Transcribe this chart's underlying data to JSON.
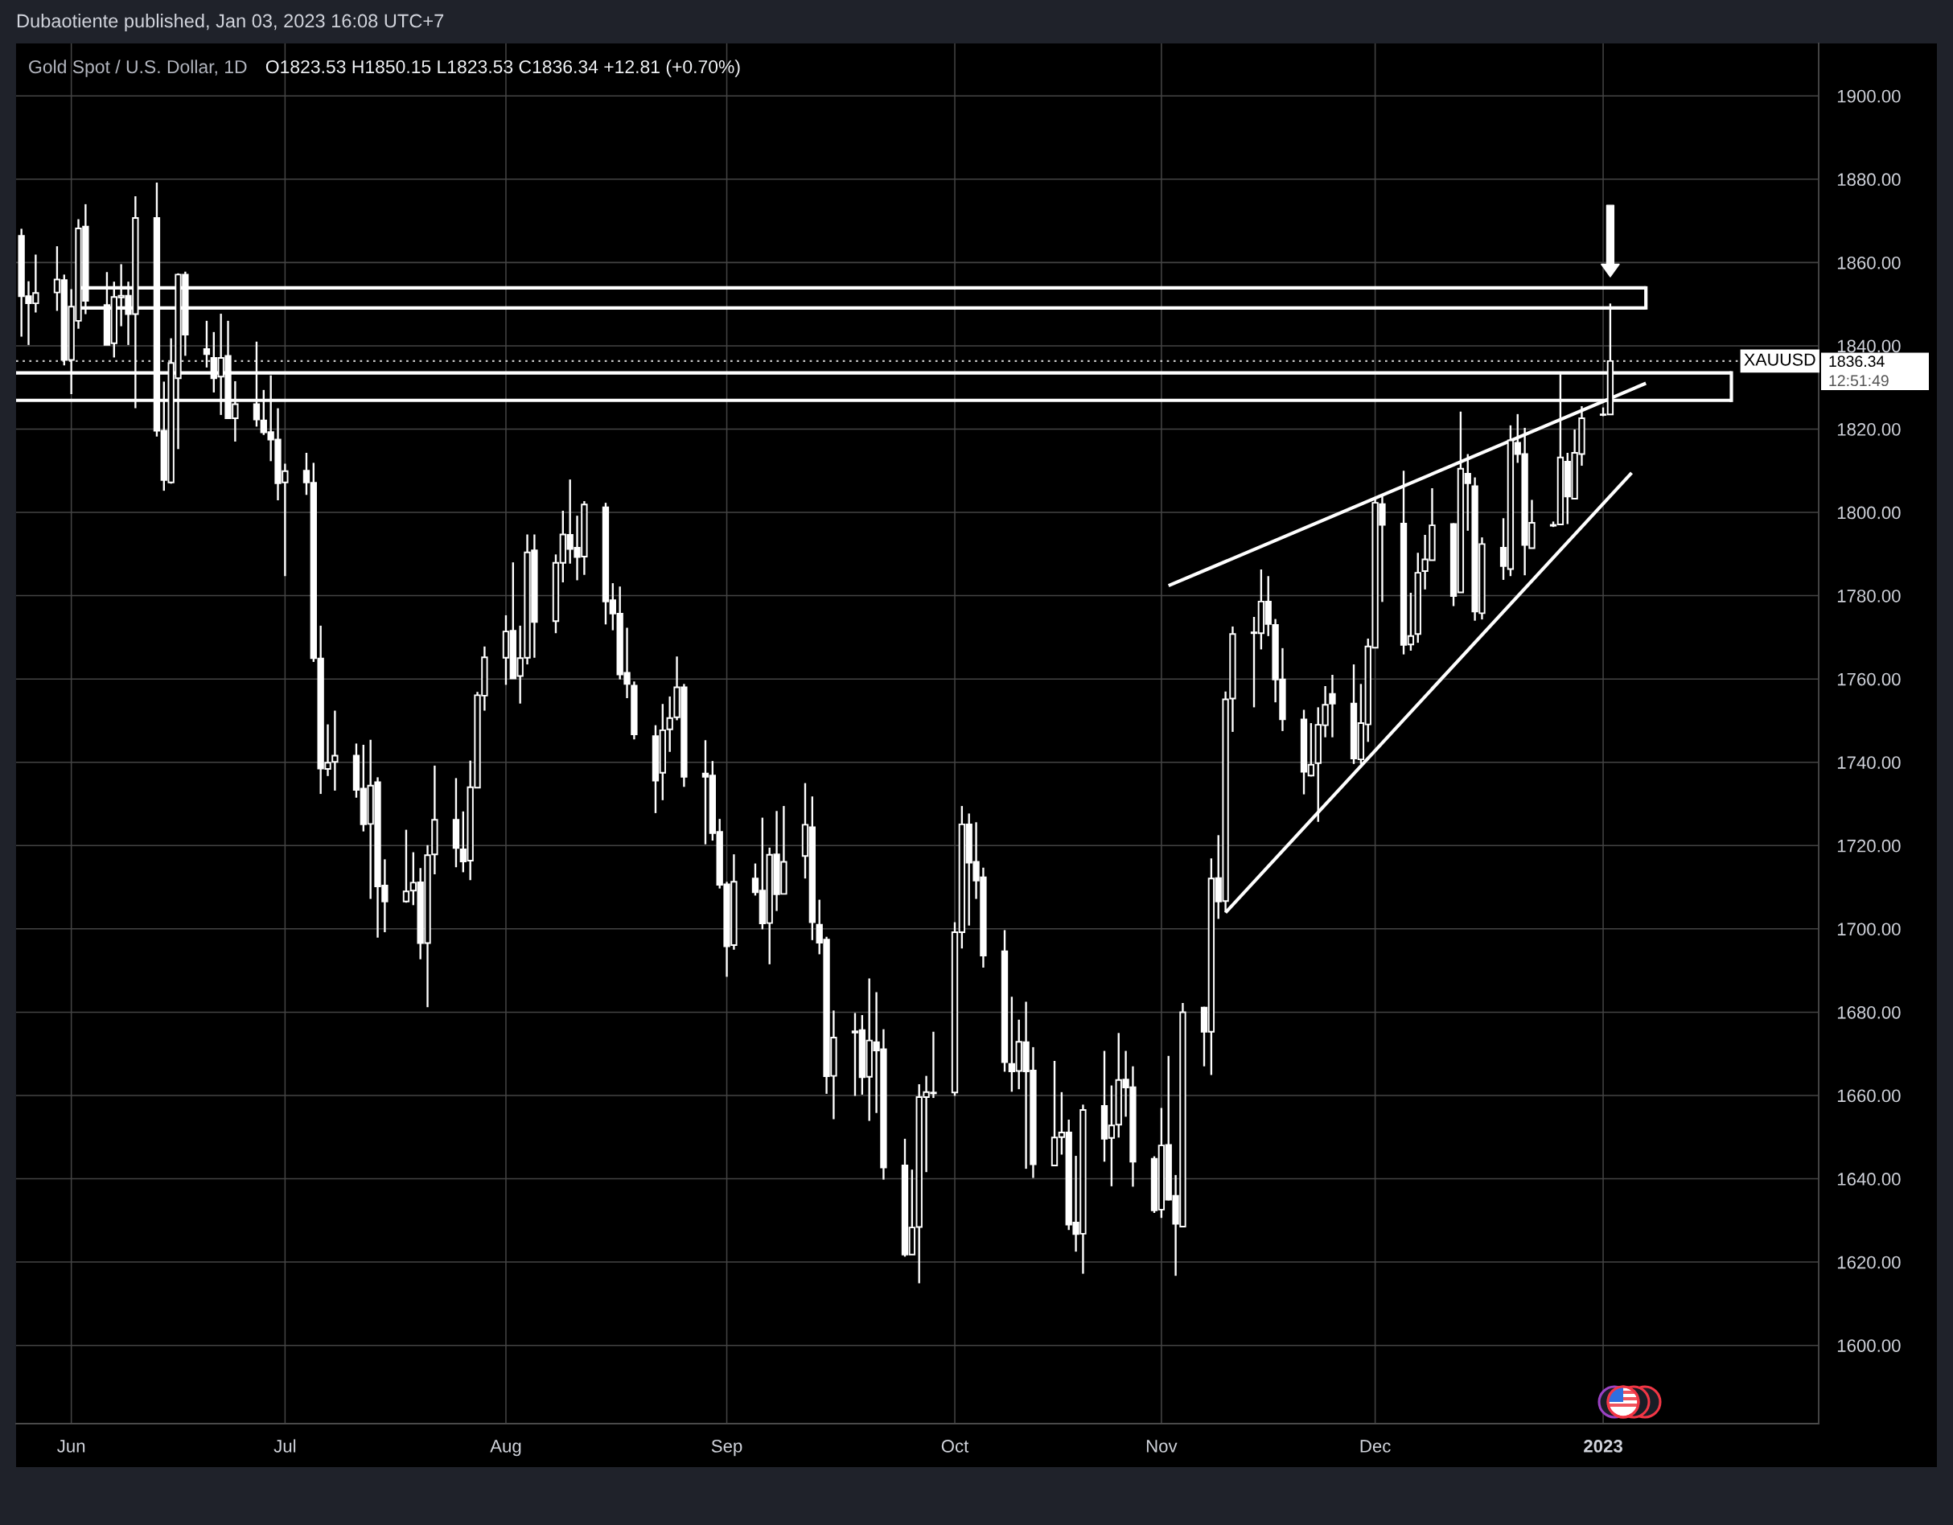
{
  "chart_data": {
    "type": "candlestick",
    "title": "Gold Spot / U.S. Dollar, 1D",
    "subtitle": "O1823.53 H1850.15 L1823.53 C1836.34 +12.81 (+0.70%)",
    "color": "#ffffff",
    "x": [
      "2022-05-25",
      "2022-05-26",
      "2022-05-27",
      "2022-05-30",
      "2022-05-31",
      "2022-06-01",
      "2022-06-02",
      "2022-06-03",
      "2022-06-06",
      "2022-06-07",
      "2022-06-08",
      "2022-06-09",
      "2022-06-10",
      "2022-06-13",
      "2022-06-14",
      "2022-06-15",
      "2022-06-16",
      "2022-06-17",
      "2022-06-20",
      "2022-06-21",
      "2022-06-22",
      "2022-06-23",
      "2022-06-24",
      "2022-06-27",
      "2022-06-28",
      "2022-06-29",
      "2022-06-30",
      "2022-07-01",
      "2022-07-04",
      "2022-07-05",
      "2022-07-06",
      "2022-07-07",
      "2022-07-08",
      "2022-07-11",
      "2022-07-12",
      "2022-07-13",
      "2022-07-14",
      "2022-07-15",
      "2022-07-18",
      "2022-07-19",
      "2022-07-20",
      "2022-07-21",
      "2022-07-22",
      "2022-07-25",
      "2022-07-26",
      "2022-07-27",
      "2022-07-28",
      "2022-07-29",
      "2022-08-01",
      "2022-08-02",
      "2022-08-03",
      "2022-08-04",
      "2022-08-05",
      "2022-08-08",
      "2022-08-09",
      "2022-08-10",
      "2022-08-11",
      "2022-08-12",
      "2022-08-15",
      "2022-08-16",
      "2022-08-17",
      "2022-08-18",
      "2022-08-19",
      "2022-08-22",
      "2022-08-23",
      "2022-08-24",
      "2022-08-25",
      "2022-08-26",
      "2022-08-29",
      "2022-08-30",
      "2022-08-31",
      "2022-09-01",
      "2022-09-02",
      "2022-09-05",
      "2022-09-06",
      "2022-09-07",
      "2022-09-08",
      "2022-09-09",
      "2022-09-12",
      "2022-09-13",
      "2022-09-14",
      "2022-09-15",
      "2022-09-16",
      "2022-09-19",
      "2022-09-20",
      "2022-09-21",
      "2022-09-22",
      "2022-09-23",
      "2022-09-26",
      "2022-09-27",
      "2022-09-28",
      "2022-09-29",
      "2022-09-30",
      "2022-10-03",
      "2022-10-04",
      "2022-10-05",
      "2022-10-06",
      "2022-10-07",
      "2022-10-10",
      "2022-10-11",
      "2022-10-12",
      "2022-10-13",
      "2022-10-14",
      "2022-10-17",
      "2022-10-18",
      "2022-10-19",
      "2022-10-20",
      "2022-10-21",
      "2022-10-24",
      "2022-10-25",
      "2022-10-26",
      "2022-10-27",
      "2022-10-28",
      "2022-10-31",
      "2022-11-01",
      "2022-11-02",
      "2022-11-03",
      "2022-11-04",
      "2022-11-07",
      "2022-11-08",
      "2022-11-09",
      "2022-11-10",
      "2022-11-11",
      "2022-11-14",
      "2022-11-15",
      "2022-11-16",
      "2022-11-17",
      "2022-11-18",
      "2022-11-21",
      "2022-11-22",
      "2022-11-23",
      "2022-11-24",
      "2022-11-25",
      "2022-11-28",
      "2022-11-29",
      "2022-11-30",
      "2022-12-01",
      "2022-12-02",
      "2022-12-05",
      "2022-12-06",
      "2022-12-07",
      "2022-12-08",
      "2022-12-09",
      "2022-12-12",
      "2022-12-13",
      "2022-12-14",
      "2022-12-15",
      "2022-12-16",
      "2022-12-19",
      "2022-12-20",
      "2022-12-21",
      "2022-12-22",
      "2022-12-23",
      "2022-12-26",
      "2022-12-27",
      "2022-12-28",
      "2022-12-29",
      "2022-12-30",
      "2023-01-02",
      "2023-01-03"
    ],
    "ohlc": [
      [
        1866.4,
        1868.1,
        1842.2,
        1851.9
      ],
      [
        1851.9,
        1855.5,
        1840.2,
        1850.2
      ],
      [
        1850.2,
        1861.9,
        1848.0,
        1852.7
      ],
      [
        1852.8,
        1863.9,
        1848.4,
        1855.9
      ],
      [
        1855.8,
        1857.1,
        1835.3,
        1836.6
      ],
      [
        1836.6,
        1853.6,
        1828.4,
        1849.4
      ],
      [
        1846.0,
        1870.4,
        1844.1,
        1868.2
      ],
      [
        1868.6,
        1874.0,
        1847.6,
        1850.8
      ],
      [
        1849.8,
        1857.7,
        1840.2,
        1840.2
      ],
      [
        1840.6,
        1855.4,
        1837.2,
        1851.7
      ],
      [
        1851.6,
        1859.6,
        1844.7,
        1852.0
      ],
      [
        1852.0,
        1855.4,
        1840.2,
        1847.6
      ],
      [
        1847.6,
        1875.9,
        1825.0,
        1870.7
      ],
      [
        1870.7,
        1879.2,
        1818.2,
        1819.6
      ],
      [
        1819.6,
        1831.4,
        1805.2,
        1807.8
      ],
      [
        1807.2,
        1841.8,
        1806.9,
        1835.9
      ],
      [
        1832.2,
        1857.4,
        1815.2,
        1857.1
      ],
      [
        1857.1,
        1857.8,
        1837.6,
        1842.7
      ],
      [
        1839.2,
        1846.0,
        1834.8,
        1838.0
      ],
      [
        1837.1,
        1843.3,
        1828.8,
        1832.2
      ],
      [
        1832.6,
        1847.7,
        1823.4,
        1837.1
      ],
      [
        1837.6,
        1846.0,
        1822.6,
        1822.6
      ],
      [
        1822.6,
        1831.5,
        1817.0,
        1826.0
      ],
      [
        1826.0,
        1841.0,
        1820.6,
        1822.3
      ],
      [
        1822.1,
        1829.4,
        1818.6,
        1819.2
      ],
      [
        1819.3,
        1832.9,
        1812.3,
        1817.5
      ],
      [
        1817.5,
        1825.0,
        1802.9,
        1807.0
      ],
      [
        1807.2,
        1811.7,
        1784.7,
        1809.9
      ],
      [
        1810.0,
        1814.3,
        1804.2,
        1807.2
      ],
      [
        1807.1,
        1811.9,
        1764.1,
        1765.0
      ],
      [
        1764.9,
        1772.8,
        1732.4,
        1738.5
      ],
      [
        1738.4,
        1749.1,
        1736.7,
        1739.9
      ],
      [
        1740.1,
        1752.4,
        1733.2,
        1741.6
      ],
      [
        1741.6,
        1744.5,
        1731.5,
        1733.4
      ],
      [
        1733.7,
        1744.2,
        1723.4,
        1725.1
      ],
      [
        1725.2,
        1745.4,
        1707.2,
        1734.4
      ],
      [
        1735.2,
        1736.4,
        1697.9,
        1710.2
      ],
      [
        1710.4,
        1716.7,
        1699.2,
        1706.6
      ],
      [
        1706.6,
        1723.8,
        1706.3,
        1709.0
      ],
      [
        1709.2,
        1718.4,
        1705.7,
        1711.1
      ],
      [
        1711.2,
        1714.6,
        1692.7,
        1696.6
      ],
      [
        1696.6,
        1720.1,
        1681.2,
        1717.7
      ],
      [
        1717.9,
        1739.2,
        1713.1,
        1726.2
      ],
      [
        1726.2,
        1736.2,
        1714.8,
        1719.4
      ],
      [
        1719.1,
        1728.2,
        1713.6,
        1716.2
      ],
      [
        1716.4,
        1740.4,
        1711.7,
        1734.0
      ],
      [
        1733.9,
        1756.9,
        1733.9,
        1756.1
      ],
      [
        1756.0,
        1767.8,
        1752.4,
        1765.2
      ],
      [
        1765.1,
        1775.3,
        1758.6,
        1771.4
      ],
      [
        1771.6,
        1788.0,
        1760.1,
        1760.1
      ],
      [
        1760.7,
        1772.8,
        1754.1,
        1765.0
      ],
      [
        1765.1,
        1794.7,
        1763.5,
        1790.4
      ],
      [
        1790.9,
        1794.7,
        1765.1,
        1773.7
      ],
      [
        1773.9,
        1789.9,
        1771.0,
        1787.9
      ],
      [
        1787.9,
        1800.4,
        1783.2,
        1794.7
      ],
      [
        1794.6,
        1807.9,
        1787.7,
        1791.2
      ],
      [
        1791.5,
        1799.2,
        1783.7,
        1789.3
      ],
      [
        1789.4,
        1802.7,
        1785.0,
        1801.9
      ],
      [
        1801.2,
        1802.3,
        1773.1,
        1778.6
      ],
      [
        1778.9,
        1783.0,
        1771.7,
        1775.7
      ],
      [
        1775.7,
        1782.2,
        1759.9,
        1761.1
      ],
      [
        1761.5,
        1772.3,
        1755.4,
        1758.8
      ],
      [
        1758.4,
        1759.4,
        1745.5,
        1746.7
      ],
      [
        1746.3,
        1748.9,
        1727.8,
        1735.6
      ],
      [
        1737.5,
        1754.0,
        1730.9,
        1747.7
      ],
      [
        1747.9,
        1755.8,
        1742.5,
        1750.6
      ],
      [
        1750.8,
        1765.4,
        1750.1,
        1758.0
      ],
      [
        1758.0,
        1758.8,
        1734.1,
        1736.5
      ],
      [
        1737.3,
        1745.3,
        1720.3,
        1736.5
      ],
      [
        1736.8,
        1740.3,
        1721.2,
        1723.0
      ],
      [
        1723.3,
        1726.4,
        1709.7,
        1710.6
      ],
      [
        1710.7,
        1711.3,
        1688.5,
        1695.8
      ],
      [
        1696.1,
        1717.9,
        1695.0,
        1711.3
      ],
      [
        1712.1,
        1715.7,
        1708.0,
        1708.8
      ],
      [
        1709.2,
        1726.7,
        1699.9,
        1701.3
      ],
      [
        1701.4,
        1719.5,
        1691.5,
        1717.8
      ],
      [
        1717.9,
        1728.3,
        1704.3,
        1708.3
      ],
      [
        1708.4,
        1729.5,
        1708.4,
        1716.1
      ],
      [
        1717.5,
        1735.0,
        1712.1,
        1725.0
      ],
      [
        1724.4,
        1731.8,
        1697.3,
        1701.6
      ],
      [
        1701.0,
        1707.0,
        1693.9,
        1696.7
      ],
      [
        1697.4,
        1698.1,
        1660.4,
        1664.6
      ],
      [
        1664.7,
        1680.4,
        1654.3,
        1673.9
      ],
      [
        1675.1,
        1679.8,
        1659.9,
        1675.4
      ],
      [
        1675.7,
        1679.3,
        1660.2,
        1664.4
      ],
      [
        1664.5,
        1688.1,
        1653.9,
        1673.2
      ],
      [
        1672.8,
        1684.8,
        1655.8,
        1670.8
      ],
      [
        1671.1,
        1675.9,
        1639.8,
        1642.7
      ],
      [
        1643.2,
        1649.6,
        1621.3,
        1621.8
      ],
      [
        1621.8,
        1642.2,
        1621.8,
        1628.3
      ],
      [
        1628.4,
        1662.7,
        1614.9,
        1659.6
      ],
      [
        1659.6,
        1664.7,
        1641.6,
        1660.8
      ],
      [
        1660.5,
        1675.3,
        1659.4,
        1660.7
      ],
      [
        1660.7,
        1701.6,
        1659.9,
        1699.2
      ],
      [
        1699.2,
        1729.5,
        1695.3,
        1725.1
      ],
      [
        1725.1,
        1727.7,
        1700.8,
        1715.9
      ],
      [
        1716.1,
        1725.6,
        1707.2,
        1711.6
      ],
      [
        1712.4,
        1714.7,
        1690.7,
        1693.6
      ],
      [
        1694.6,
        1699.7,
        1665.7,
        1668.0
      ],
      [
        1667.6,
        1683.7,
        1660.9,
        1665.8
      ],
      [
        1665.9,
        1678.2,
        1661.5,
        1672.9
      ],
      [
        1672.8,
        1682.5,
        1642.4,
        1665.8
      ],
      [
        1666.0,
        1671.6,
        1640.2,
        1643.5
      ],
      [
        1643.2,
        1668.3,
        1643.2,
        1649.9
      ],
      [
        1650.0,
        1660.8,
        1645.8,
        1651.1
      ],
      [
        1651.1,
        1654.2,
        1627.7,
        1629.0
      ],
      [
        1629.5,
        1645.5,
        1622.5,
        1626.7
      ],
      [
        1626.8,
        1657.8,
        1617.2,
        1656.5
      ],
      [
        1657.5,
        1670.7,
        1644.1,
        1649.6
      ],
      [
        1649.8,
        1662.4,
        1638.2,
        1652.8
      ],
      [
        1653.0,
        1675.0,
        1649.9,
        1663.7
      ],
      [
        1663.8,
        1670.7,
        1654.9,
        1661.9
      ],
      [
        1662.0,
        1667.0,
        1638.1,
        1644.1
      ],
      [
        1644.8,
        1645.4,
        1631.8,
        1632.4
      ],
      [
        1632.6,
        1657.0,
        1630.6,
        1648.0
      ],
      [
        1648.1,
        1669.5,
        1634.8,
        1635.0
      ],
      [
        1635.9,
        1640.9,
        1616.7,
        1629.2
      ],
      [
        1628.5,
        1682.2,
        1628.5,
        1680.0
      ],
      [
        1681.1,
        1681.3,
        1667.0,
        1675.3
      ],
      [
        1675.3,
        1716.9,
        1664.9,
        1712.1
      ],
      [
        1712.2,
        1722.5,
        1702.4,
        1706.6
      ],
      [
        1706.7,
        1757.0,
        1704.0,
        1755.1
      ],
      [
        1755.3,
        1772.6,
        1747.3,
        1770.8
      ],
      [
        1771.0,
        1774.9,
        1753.2,
        1771.2
      ],
      [
        1771.0,
        1786.3,
        1767.1,
        1778.6
      ],
      [
        1778.6,
        1784.7,
        1770.3,
        1773.2
      ],
      [
        1773.0,
        1774.4,
        1754.4,
        1759.9
      ],
      [
        1759.9,
        1767.4,
        1747.5,
        1750.3
      ],
      [
        1750.3,
        1752.6,
        1732.3,
        1737.7
      ],
      [
        1736.8,
        1749.4,
        1736.6,
        1739.4
      ],
      [
        1739.8,
        1753.2,
        1725.7,
        1749.0
      ],
      [
        1748.9,
        1758.3,
        1746.0,
        1753.8
      ],
      [
        1756.4,
        1761.0,
        1746.0,
        1754.1
      ],
      [
        1754.1,
        1763.5,
        1739.6,
        1740.9
      ],
      [
        1740.7,
        1758.8,
        1739.6,
        1749.4
      ],
      [
        1749.1,
        1769.7,
        1744.9,
        1767.8
      ],
      [
        1767.5,
        1803.7,
        1767.5,
        1802.3
      ],
      [
        1802.0,
        1804.2,
        1778.5,
        1797.0
      ],
      [
        1797.3,
        1810.0,
        1765.9,
        1768.2
      ],
      [
        1768.3,
        1780.7,
        1766.8,
        1770.3
      ],
      [
        1770.8,
        1790.3,
        1768.7,
        1785.5
      ],
      [
        1785.9,
        1794.6,
        1781.5,
        1788.7
      ],
      [
        1788.5,
        1805.8,
        1788.5,
        1796.9
      ],
      [
        1797.2,
        1797.4,
        1777.5,
        1779.9
      ],
      [
        1780.8,
        1824.2,
        1780.8,
        1810.5
      ],
      [
        1809.3,
        1814.0,
        1795.6,
        1807.0
      ],
      [
        1806.3,
        1808.4,
        1774.0,
        1776.2
      ],
      [
        1775.8,
        1794.0,
        1774.3,
        1792.4
      ],
      [
        1791.5,
        1798.6,
        1783.8,
        1787.1
      ],
      [
        1786.4,
        1820.9,
        1784.7,
        1817.3
      ],
      [
        1816.7,
        1823.6,
        1811.9,
        1814.0
      ],
      [
        1814.0,
        1820.3,
        1784.9,
        1792.2
      ],
      [
        1791.4,
        1803.0,
        1791.4,
        1797.5
      ],
      [
        1796.8,
        1797.8,
        1796.5,
        1797.0
      ],
      [
        1797.1,
        1833.2,
        1797.0,
        1813.2
      ],
      [
        1812.2,
        1814.3,
        1797.2,
        1803.8
      ],
      [
        1803.3,
        1819.9,
        1803.3,
        1814.3
      ],
      [
        1814.0,
        1825.5,
        1811.2,
        1822.6
      ],
      [
        1823.4,
        1825.2,
        1823.1,
        1823.53
      ],
      [
        1823.53,
        1850.15,
        1823.53,
        1836.34
      ]
    ],
    "series": [
      {
        "type": "line",
        "color": "#ffffff",
        "x": [
          "2022-06-02",
          "2023-01-08"
        ],
        "values": [
          1853.9,
          1853.9
        ]
      },
      {
        "type": "line",
        "color": "#ffffff",
        "x": [
          "2022-06-02",
          "2023-01-08"
        ],
        "values": [
          1849.1,
          1849.1
        ]
      },
      {
        "type": "line",
        "color": "#ffffff",
        "x": [
          "2022-05-24T06:00",
          "2023-01-20"
        ],
        "values": [
          1833.5,
          1833.5
        ]
      },
      {
        "type": "line",
        "color": "#ffffff",
        "x": [
          "2022-05-24T06:00",
          "2023-01-20"
        ],
        "values": [
          1826.9,
          1826.9
        ]
      },
      {
        "type": "line",
        "color": "#ffffff",
        "x": [
          "2022-11-02",
          "2023-01-08"
        ],
        "values": [
          1782.4,
          1831.0
        ]
      },
      {
        "type": "line",
        "color": "#ffffff",
        "x": [
          "2022-11-10",
          "2023-01-06"
        ],
        "values": [
          1703.9,
          1809.5
        ]
      }
    ],
    "xlim": [
      "2022-05-24T06:00",
      "2023-02-01T06:00"
    ],
    "xticks": [
      {
        "value": "2022-06-01",
        "label": "Jun"
      },
      {
        "value": "2022-07-01",
        "label": "Jul"
      },
      {
        "value": "2022-08-01",
        "label": "Aug"
      },
      {
        "value": "2022-09-01",
        "label": "Sep"
      },
      {
        "value": "2022-10-03",
        "label": "Oct"
      },
      {
        "value": "2022-11-01",
        "label": "Nov"
      },
      {
        "value": "2022-12-01",
        "label": "Dec"
      },
      {
        "value": "2023-01-02",
        "label": "2023"
      }
    ],
    "ylim": [
      1581.2,
      1912.6
    ],
    "yticks": [
      {
        "value": 1600,
        "label": "1600.00"
      },
      {
        "value": 1620,
        "label": "1620.00"
      },
      {
        "value": 1640,
        "label": "1640.00"
      },
      {
        "value": 1660,
        "label": "1660.00"
      },
      {
        "value": 1680,
        "label": "1680.00"
      },
      {
        "value": 1700,
        "label": "1700.00"
      },
      {
        "value": 1720,
        "label": "1720.00"
      },
      {
        "value": 1740,
        "label": "1740.00"
      },
      {
        "value": 1760,
        "label": "1760.00"
      },
      {
        "value": 1780,
        "label": "1780.00"
      },
      {
        "value": 1800,
        "label": "1800.00"
      },
      {
        "value": 1820,
        "label": "1820.00"
      },
      {
        "value": 1840,
        "label": "1840.00"
      },
      {
        "value": 1860,
        "label": "1860.00"
      },
      {
        "value": 1880,
        "label": "1880.00"
      },
      {
        "value": 1900,
        "label": "1900.00"
      }
    ],
    "grid": true,
    "ref_lines": [
      {
        "axis": "y",
        "value": 1836.34,
        "label": "XAUUSD",
        "line_style": "dotted",
        "color": "#c8c8c8"
      }
    ],
    "annotations": [
      "Dubaotiente published, Jan 03, 2023 16:08 UTC+7",
      "1836.34",
      "12:51:49"
    ]
  }
}
